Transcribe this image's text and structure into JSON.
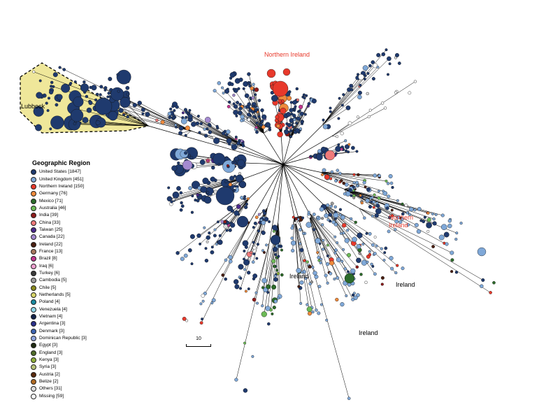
{
  "legend": {
    "title": "Geographic Region",
    "items": [
      {
        "label": "United States [1847]",
        "color": "#1f3a6e"
      },
      {
        "label": "United Kingdom [451]",
        "color": "#7fa8d8"
      },
      {
        "label": "Northern Ireland [150]",
        "color": "#e8392b"
      },
      {
        "label": "Germany [76]",
        "color": "#f08a3c"
      },
      {
        "label": "Mexico [71]",
        "color": "#2c6b2a"
      },
      {
        "label": "Australia [46]",
        "color": "#6dbb57"
      },
      {
        "label": "India [39]",
        "color": "#8e1b1b"
      },
      {
        "label": "China [33]",
        "color": "#f07a7a"
      },
      {
        "label": "Taiwan [25]",
        "color": "#4b2a8c"
      },
      {
        "label": "Canada [22]",
        "color": "#a48ad0"
      },
      {
        "label": "Ireland [22]",
        "color": "#4a1f12"
      },
      {
        "label": "France [13]",
        "color": "#a8785e"
      },
      {
        "label": "Brazil [8]",
        "color": "#c2378f"
      },
      {
        "label": "Iraq [6]",
        "color": "#f0a0cf"
      },
      {
        "label": "Turkey [6]",
        "color": "#3a3a3a"
      },
      {
        "label": "Cambodia [5]",
        "color": "#9a9a9a"
      },
      {
        "label": "Chile [5]",
        "color": "#8a8a1e"
      },
      {
        "label": "Netherlands [5]",
        "color": "#d8d56a"
      },
      {
        "label": "Poland [4]",
        "color": "#1b8aa0"
      },
      {
        "label": "Venezuela [4]",
        "color": "#8fd6e8"
      },
      {
        "label": "Vietnam [4]",
        "color": "#14224a"
      },
      {
        "label": "Argentina [3]",
        "color": "#2a2f8a"
      },
      {
        "label": "Denmark [3]",
        "color": "#3c63b0"
      },
      {
        "label": "Dominican Republic [3]",
        "color": "#8ea4dc"
      },
      {
        "label": "Egypt [3]",
        "color": "#1e2a12"
      },
      {
        "label": "England [3]",
        "color": "#4f6b2a"
      },
      {
        "label": "Kenya [3]",
        "color": "#8fae3a"
      },
      {
        "label": "Syria [3]",
        "color": "#b8c27a"
      },
      {
        "label": "Austria [2]",
        "color": "#5a2a0e"
      },
      {
        "label": "Belize [2]",
        "color": "#b06a22"
      },
      {
        "label": "Others [31]",
        "color": "#dcdcdc"
      },
      {
        "label": "Missing [59]",
        "color": "#ffffff"
      }
    ]
  },
  "annotations": {
    "northern_ireland_top": "Northern Ireland",
    "northern_ireland_right_1": "Northern",
    "northern_ireland_right_2": "Ireland",
    "lubbock": "Lubbock",
    "ireland_center": "Ireland",
    "ireland_right": "Ireland",
    "ireland_bottom": "Ireland"
  },
  "scale_bar": {
    "label": "10"
  },
  "colors": {
    "highlight_fill": "#efe79a",
    "branch": "#000000",
    "northern_ireland_text": "#e8392b"
  }
}
